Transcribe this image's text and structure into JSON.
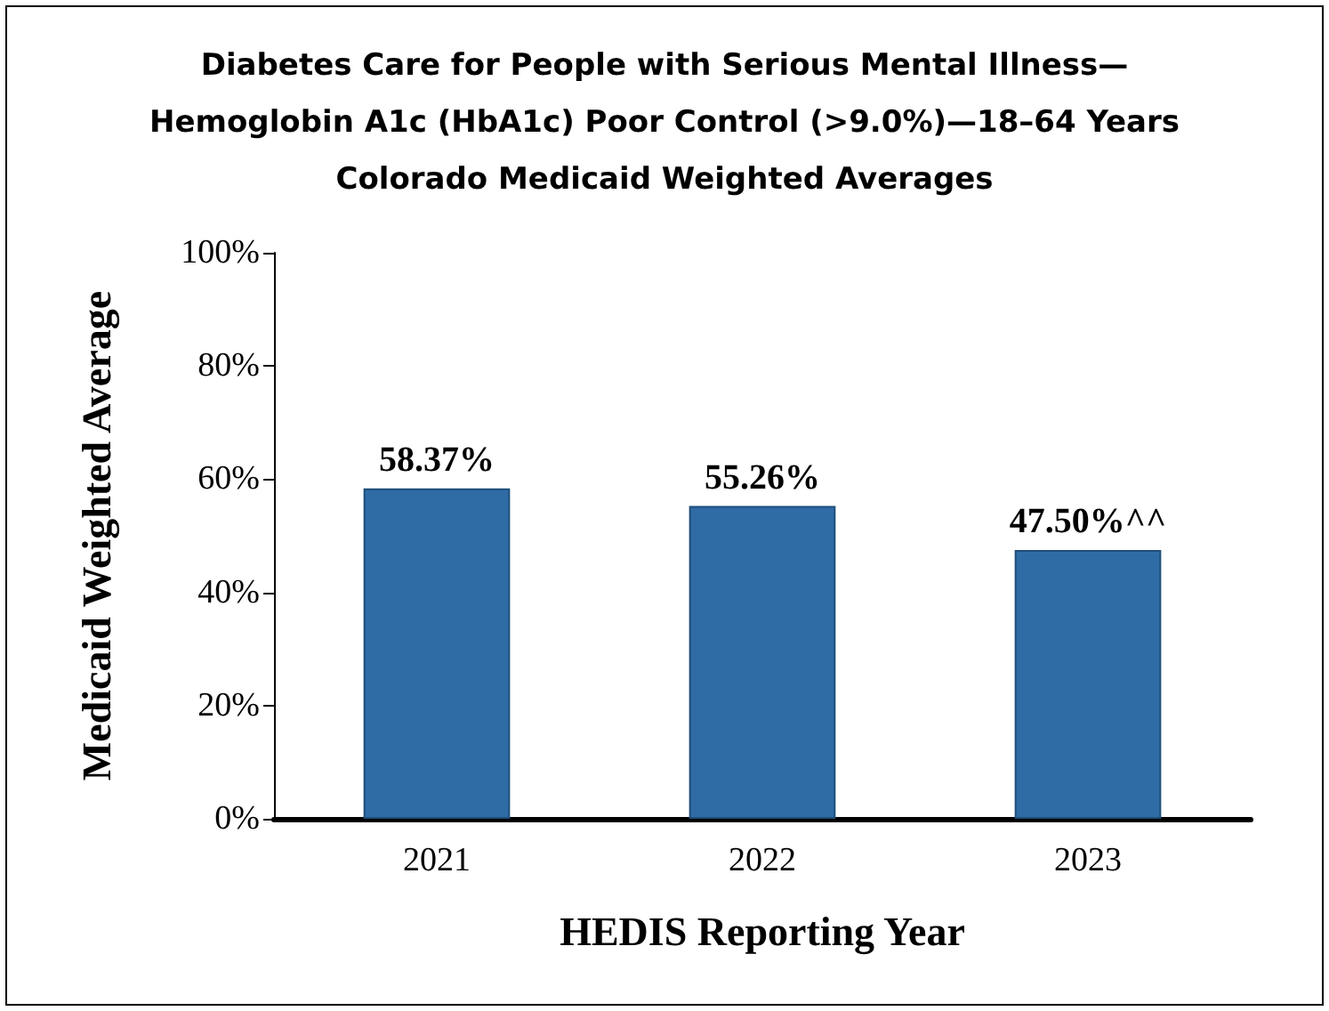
{
  "chart_data": {
    "type": "bar",
    "title": "Diabetes Care for People with Serious Mental Illness—\nHemoglobin A1c (HbA1c) Poor Control (>9.0%)—18–64 Years\nColorado Medicaid Weighted Averages",
    "xlabel": "HEDIS Reporting Year",
    "ylabel": "Medicaid Weighted Average",
    "categories": [
      "2021",
      "2022",
      "2023"
    ],
    "values": [
      58.37,
      55.26,
      47.5
    ],
    "value_labels": [
      "58.37%",
      "55.26%",
      "47.50%^^"
    ],
    "color": "#2f6ca6",
    "ylim": [
      0,
      100
    ],
    "yticks": [
      {
        "value": 0,
        "label": "0%"
      },
      {
        "value": 20,
        "label": "20%"
      },
      {
        "value": 40,
        "label": "40%"
      },
      {
        "value": 60,
        "label": "60%"
      },
      {
        "value": 80,
        "label": "80%"
      },
      {
        "value": 100,
        "label": "100%"
      }
    ],
    "grid": false
  }
}
